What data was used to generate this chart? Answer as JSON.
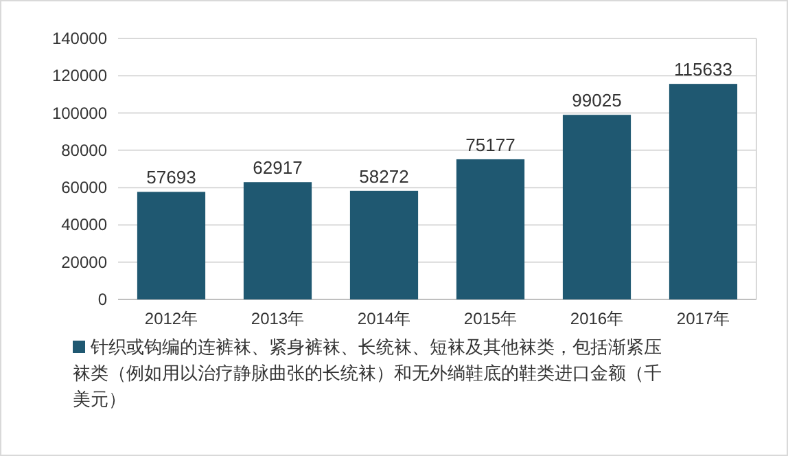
{
  "chart_data": {
    "type": "bar",
    "categories": [
      "2012年",
      "2013年",
      "2014年",
      "2015年",
      "2016年",
      "2017年"
    ],
    "series": [
      {
        "name": "针织或钩编的连裤袜、紧身裤袜、长统袜、短袜及其他袜类，包括渐紧压袜类（例如用以治疗静脉曲张的长统袜）和无外绱鞋底的鞋类进口金额（千美元）",
        "color": "#1f5871",
        "values": [
          57693,
          62917,
          58272,
          75177,
          99025,
          115633
        ]
      }
    ],
    "ylim": [
      0,
      140000
    ],
    "yticks": [
      0,
      20000,
      40000,
      60000,
      80000,
      100000,
      120000,
      140000
    ],
    "grid": "y",
    "legend": "bottom",
    "data_labels": true
  }
}
